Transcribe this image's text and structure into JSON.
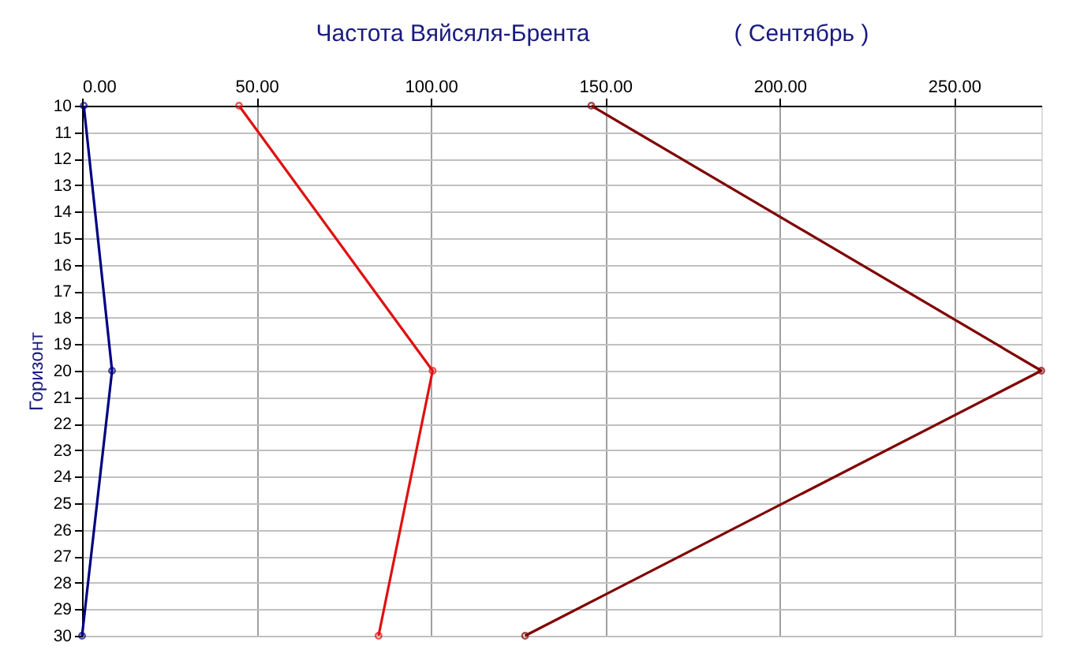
{
  "chart_data": {
    "type": "line",
    "title": "Частота Вяйсяля-Брента",
    "subtitle": "( Сентябрь )",
    "ylabel": "Горизонт",
    "x": [
      10,
      20,
      30
    ],
    "series": [
      {
        "color": "#000080",
        "values": [
          0.5,
          8.6,
          0
        ]
      },
      {
        "color": "#e01010",
        "values": [
          45,
          100.5,
          85
        ]
      },
      {
        "color": "#800000",
        "values": [
          146,
          275,
          127
        ]
      }
    ],
    "orientation": "horizontal",
    "xlim": [
      0,
      275
    ],
    "xticks": [
      {
        "value": 0,
        "label": "0.00"
      },
      {
        "value": 50,
        "label": "50.00"
      },
      {
        "value": 100,
        "label": "100.00"
      },
      {
        "value": 150,
        "label": "150.00"
      },
      {
        "value": 200,
        "label": "200.00"
      },
      {
        "value": 250,
        "label": "250.00"
      }
    ],
    "ylim": [
      30,
      10
    ],
    "yticks": [
      10,
      11,
      12,
      13,
      14,
      15,
      16,
      17,
      18,
      19,
      20,
      21,
      22,
      23,
      24,
      25,
      26,
      27,
      28,
      29,
      30
    ],
    "grid": true,
    "legend": false,
    "marker": "circle",
    "line_style": "solid"
  }
}
